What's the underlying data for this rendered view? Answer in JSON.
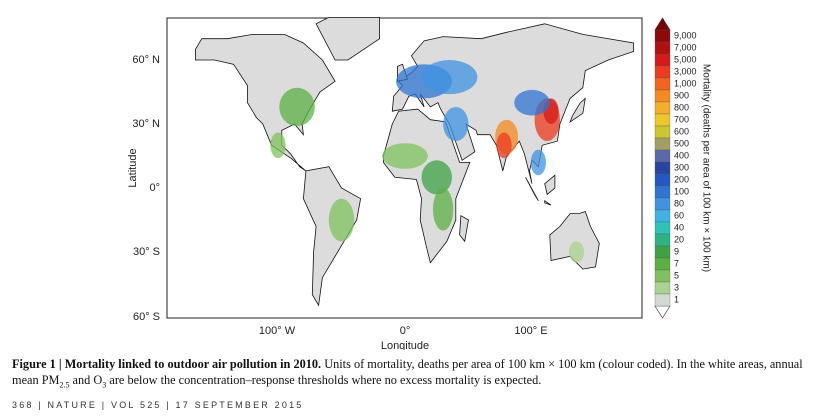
{
  "figure": {
    "y_ticks": [
      "60° N",
      "30° N",
      "0°",
      "30° S",
      "60° S"
    ],
    "x_ticks": [
      "100° W",
      "0°",
      "100° E"
    ],
    "x_label": "Longitude",
    "y_label": "Latitude",
    "colorbar": {
      "label": "Mortality (deaths per area of 100 km × 100 km)",
      "ticks": [
        "9,000",
        "7,000",
        "5,000",
        "3,000",
        "1,000",
        "900",
        "800",
        "700",
        "600",
        "500",
        "400",
        "300",
        "200",
        "100",
        "80",
        "60",
        "40",
        "20",
        "9",
        "7",
        "5",
        "3",
        "1"
      ],
      "colors": [
        "#8e0a0a",
        "#b30f0f",
        "#d41b17",
        "#ee3a1f",
        "#f3651f",
        "#f58a22",
        "#f6ad27",
        "#ecc82a",
        "#cdc62e",
        "#a39f62",
        "#5a6aa8",
        "#2943a3",
        "#2457c2",
        "#2f74d3",
        "#3f93e0",
        "#3fb2e3",
        "#2fc2b6",
        "#2db283",
        "#3ea245",
        "#5bb043",
        "#7fc15e",
        "#a9d390",
        "#d2dad2"
      ]
    }
  },
  "caption": {
    "title": "Figure 1 | Mortality linked to outdoor air pollution in 2010.",
    "text_1": "Units of mortality, deaths per area of 100 km × 100 km (colour coded). In the white areas, annual mean PM",
    "sub_1": "2.5",
    "text_2": " and O",
    "sub_2": "3",
    "text_3": " are below the concentration–response thresholds where no excess mortality is expected."
  },
  "footer": "368 | NATURE | VOL 525 | 17 SEPTEMBER 2015"
}
